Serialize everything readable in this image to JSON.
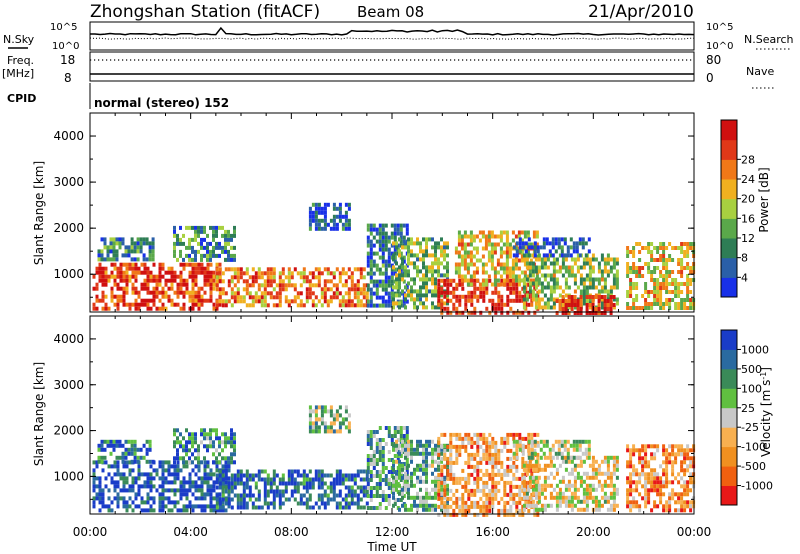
{
  "header": {
    "station_title": "Zhongshan Station (fitACF)",
    "beam": "Beam 08",
    "date": "21/Apr/2010"
  },
  "status_panels": {
    "nsky_label": "N.Sky",
    "nsky_ticks": [
      "10^5",
      "10^0"
    ],
    "nsearch_label": "N.Search",
    "nsearch_ticks": [
      "10^5",
      "10^0"
    ],
    "freq_label": "Freq.",
    "freq_unit": "[MHz]",
    "freq_ticks": [
      "18",
      "8"
    ],
    "nave_label": "Nave",
    "nave_ticks": [
      "80",
      "0"
    ],
    "cpid_label": "CPID",
    "cpid_text": "normal (stereo) 152"
  },
  "chart_data": [
    {
      "type": "heatmap",
      "panel": "power",
      "ylabel": "Slant Range [km]",
      "xlabel": "",
      "x_range_hours": [
        0,
        24
      ],
      "ylim": [
        180,
        4500
      ],
      "y_ticks": [
        "1000",
        "2000",
        "3000",
        "4000"
      ],
      "x_ticks": [
        "00:00",
        "04:00",
        "08:00",
        "12:00",
        "16:00",
        "20:00",
        "00:00"
      ],
      "colorbar": {
        "label": "Power [dB]",
        "ticks": [
          "4",
          "8",
          "12",
          "16",
          "20",
          "24",
          "28"
        ],
        "colors": [
          "#1830e8",
          "#2a5fa8",
          "#2e7d55",
          "#5aa84a",
          "#a8d040",
          "#f0b020",
          "#f07818",
          "#e03818",
          "#d01010"
        ]
      },
      "echo_regions": [
        {
          "t0": 0.1,
          "t1": 5.2,
          "r0": 250,
          "r1": 1250,
          "level": 0.85
        },
        {
          "t0": 5.0,
          "t1": 11.0,
          "r0": 300,
          "r1": 1150,
          "level": 0.72
        },
        {
          "t0": 0.3,
          "t1": 2.5,
          "r0": 1350,
          "r1": 1800,
          "level": 0.3
        },
        {
          "t0": 3.3,
          "t1": 5.8,
          "r0": 1350,
          "r1": 2050,
          "level": 0.28
        },
        {
          "t0": 8.7,
          "t1": 10.3,
          "r0": 2000,
          "r1": 2550,
          "level": 0.12
        },
        {
          "t0": 11.0,
          "t1": 12.6,
          "r0": 300,
          "r1": 2100,
          "level": 0.22
        },
        {
          "t0": 12.0,
          "t1": 14.2,
          "r0": 250,
          "r1": 1800,
          "level": 0.42
        },
        {
          "t0": 13.8,
          "t1": 17.8,
          "r0": 200,
          "r1": 900,
          "level": 0.92
        },
        {
          "t0": 14.5,
          "t1": 17.8,
          "r0": 800,
          "r1": 1950,
          "level": 0.6
        },
        {
          "t0": 17.2,
          "t1": 21.0,
          "r0": 300,
          "r1": 1450,
          "level": 0.45
        },
        {
          "t0": 16.8,
          "t1": 19.8,
          "r0": 1450,
          "r1": 1800,
          "level": 0.15
        },
        {
          "t0": 18.5,
          "t1": 20.8,
          "r0": 200,
          "r1": 550,
          "level": 0.9
        },
        {
          "t0": 21.3,
          "t1": 24.0,
          "r0": 300,
          "r1": 1700,
          "level": 0.58
        }
      ]
    },
    {
      "type": "heatmap",
      "panel": "velocity",
      "ylabel": "Slant Range [km]",
      "xlabel": "Time UT",
      "x_range_hours": [
        0,
        24
      ],
      "ylim": [
        180,
        4500
      ],
      "y_ticks": [
        "1000",
        "2000",
        "3000",
        "4000"
      ],
      "x_ticks": [
        "00:00",
        "04:00",
        "08:00",
        "12:00",
        "16:00",
        "20:00",
        "00:00"
      ],
      "colorbar": {
        "label": "Velocity [m s^-1]",
        "ticks": [
          "1000",
          "500",
          "100",
          "25",
          "-25",
          "-100",
          "-500",
          "-1000"
        ],
        "colors": [
          "#1a3cc8",
          "#2a6aa0",
          "#3a8a58",
          "#60c040",
          "#c8c8c8",
          "#f8b050",
          "#f09020",
          "#f06010",
          "#e81818"
        ]
      },
      "echo_regions": [
        {
          "t0": 0.1,
          "t1": 5.5,
          "r0": 250,
          "r1": 1350,
          "level": 0.1
        },
        {
          "t0": 5.0,
          "t1": 11.0,
          "r0": 300,
          "r1": 1150,
          "level": 0.12
        },
        {
          "t0": 0.3,
          "t1": 2.5,
          "r0": 1350,
          "r1": 1800,
          "level": 0.2
        },
        {
          "t0": 3.3,
          "t1": 5.8,
          "r0": 1350,
          "r1": 2050,
          "level": 0.25
        },
        {
          "t0": 8.7,
          "t1": 10.3,
          "r0": 2000,
          "r1": 2550,
          "level": 0.42
        },
        {
          "t0": 11.0,
          "t1": 12.6,
          "r0": 300,
          "r1": 2100,
          "level": 0.3
        },
        {
          "t0": 12.0,
          "t1": 14.2,
          "r0": 250,
          "r1": 1800,
          "level": 0.35
        },
        {
          "t0": 13.8,
          "t1": 17.8,
          "r0": 200,
          "r1": 1950,
          "level": 0.7
        },
        {
          "t0": 17.2,
          "t1": 21.0,
          "r0": 300,
          "r1": 1450,
          "level": 0.55
        },
        {
          "t0": 16.8,
          "t1": 19.8,
          "r0": 1450,
          "r1": 1800,
          "level": 0.45
        },
        {
          "t0": 21.3,
          "t1": 24.0,
          "r0": 300,
          "r1": 1700,
          "level": 0.72
        }
      ]
    }
  ]
}
